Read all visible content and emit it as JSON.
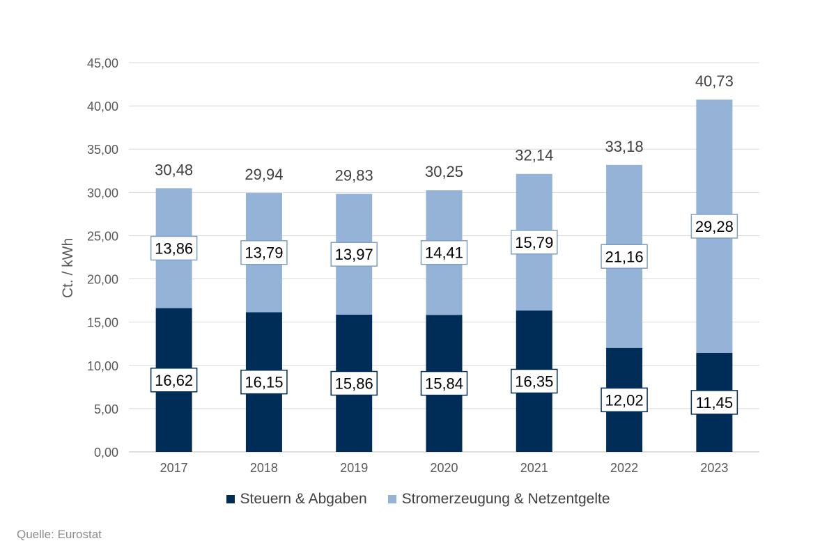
{
  "chart_data": {
    "type": "bar",
    "stacked": true,
    "categories": [
      "2017",
      "2018",
      "2019",
      "2020",
      "2021",
      "2022",
      "2023"
    ],
    "series": [
      {
        "name": "Steuern & Abgaben",
        "color": "#002d58",
        "values": [
          16.62,
          16.15,
          15.86,
          15.84,
          16.35,
          12.02,
          11.45
        ],
        "labels": [
          "16,62",
          "16,15",
          "15,86",
          "15,84",
          "16,35",
          "12,02",
          "11,45"
        ]
      },
      {
        "name": "Stromerzeugung & Netzentgelte",
        "color": "#95b3d7",
        "values": [
          13.86,
          13.79,
          13.97,
          14.41,
          15.79,
          21.16,
          29.28
        ],
        "labels": [
          "13,86",
          "13,79",
          "13,97",
          "14,41",
          "15,79",
          "21,16",
          "29,28"
        ]
      }
    ],
    "totals": [
      30.48,
      29.94,
      29.83,
      30.25,
      32.14,
      33.18,
      40.73
    ],
    "total_labels": [
      "30,48",
      "29,94",
      "29,83",
      "30,25",
      "32,14",
      "33,18",
      "40,73"
    ],
    "ylabel": "Ct. / kWh",
    "ylim": [
      0,
      45
    ],
    "yticks": [
      "0,00",
      "5,00",
      "10,00",
      "15,00",
      "20,00",
      "25,00",
      "30,00",
      "35,00",
      "40,00",
      "45,00"
    ],
    "grid": true,
    "legend_position": "bottom"
  },
  "legend": {
    "items": [
      {
        "label": "Steuern & Abgaben",
        "color": "#002d58"
      },
      {
        "label": "Stromerzeugung & Netzentgelte",
        "color": "#95b3d7"
      }
    ]
  },
  "source": "Quelle: Eurostat"
}
